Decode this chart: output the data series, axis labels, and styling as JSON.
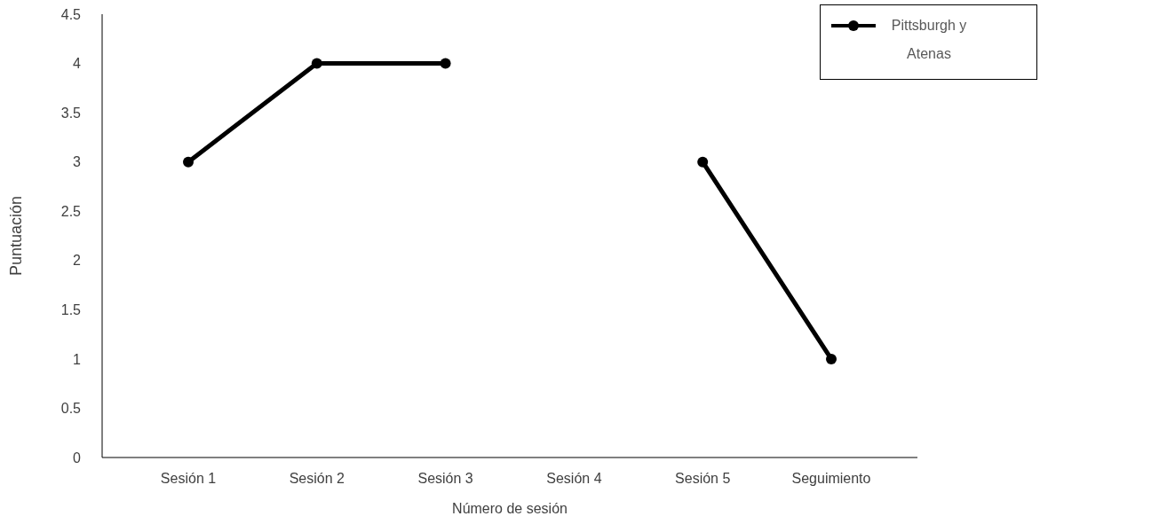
{
  "chart_data": {
    "type": "line",
    "xlabel": "Número de sesión",
    "ylabel": "Puntuación",
    "categories": [
      "Sesión 1",
      "Sesión 2",
      "Sesión 3",
      "Sesión 4",
      "Sesión 5",
      "Seguimiento"
    ],
    "series": [
      {
        "name": "Pittsburgh y Atenas",
        "color": "#000000",
        "values": [
          3,
          4,
          4,
          null,
          3,
          1
        ]
      }
    ],
    "ylim": [
      0,
      4.5
    ],
    "yticks": [
      0,
      0.5,
      1,
      1.5,
      2,
      2.5,
      3,
      3.5,
      4,
      4.5
    ],
    "grid": false,
    "legend": "top right",
    "marker": "circle",
    "line_style": "solid"
  }
}
